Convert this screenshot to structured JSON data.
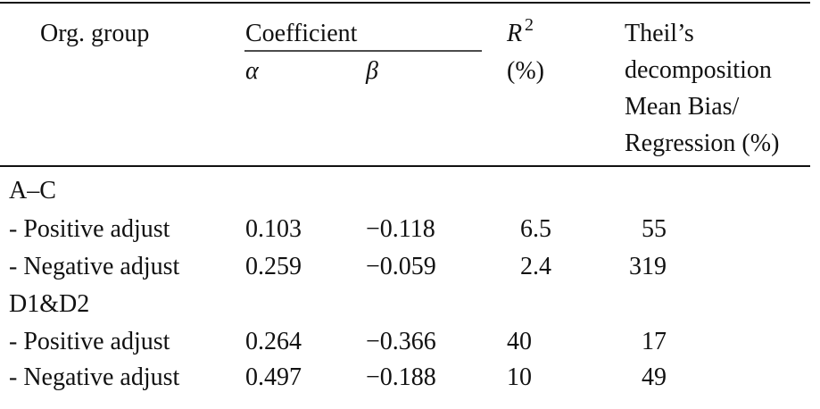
{
  "table": {
    "header": {
      "org_group": "Org. group",
      "coefficient": "Coefficient",
      "alpha": "α",
      "beta": "β",
      "r2_symbol": "R",
      "r2_exponent": "2",
      "r2_unit": "(%)",
      "theil": [
        "Theil’s",
        "decomposition",
        "Mean Bias/",
        "Regression (%)"
      ]
    },
    "rows": [
      [
        "A–C"
      ],
      [
        "- Positive adjust",
        "0.103",
        "−0.118",
        "6.5",
        "55"
      ],
      [
        "- Negative adjust",
        "0.259",
        "−0.059",
        "2.4",
        "319"
      ],
      [
        "D1&D2"
      ],
      [
        "- Positive adjust",
        "0.264",
        "−0.366",
        "40",
        "17"
      ],
      [
        "- Negative adjust",
        "0.497",
        "−0.188",
        "10",
        "49"
      ]
    ]
  }
}
